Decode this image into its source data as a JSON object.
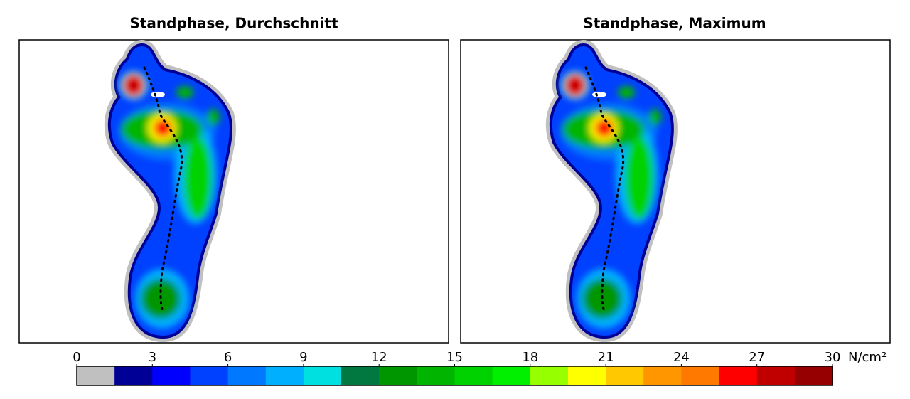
{
  "panels": [
    {
      "title": "Standphase, Durchschnitt"
    },
    {
      "title": "Standphase, Maximum"
    }
  ],
  "colorbar": {
    "ticks": [
      0,
      3,
      6,
      9,
      12,
      15,
      18,
      21,
      24,
      27,
      30
    ],
    "unit": "N/cm²",
    "colors": [
      "#c0c0c0",
      "#000096",
      "#0000ff",
      "#0040ff",
      "#0078ff",
      "#00b0ff",
      "#00e0e0",
      "#007840",
      "#009600",
      "#00b400",
      "#00d200",
      "#00f000",
      "#96ff00",
      "#ffff00",
      "#ffc800",
      "#ff9600",
      "#ff7800",
      "#ff0000",
      "#c00000",
      "#960000"
    ]
  }
}
